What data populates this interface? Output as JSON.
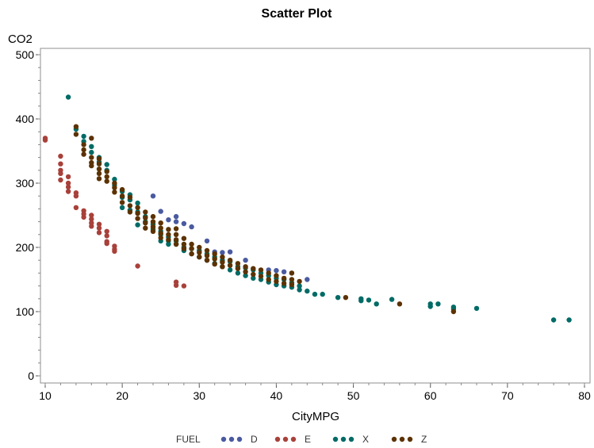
{
  "chart_data": {
    "type": "scatter",
    "title": "Scatter Plot",
    "xlabel": "CityMPG",
    "ylabel": "CO2",
    "xlim": [
      10,
      80
    ],
    "ylim": [
      0,
      500
    ],
    "xticks": [
      "10",
      "20",
      "30",
      "40",
      "50",
      "60",
      "70",
      "80"
    ],
    "yticks": [
      "0",
      "100",
      "200",
      "300",
      "400",
      "500"
    ],
    "grid": false,
    "legend": {
      "title": "FUEL",
      "position": "bottom"
    },
    "series": [
      {
        "name": "D",
        "color": "#4a5aa0",
        "points": [
          [
            24,
            280
          ],
          [
            25,
            256
          ],
          [
            26,
            243
          ],
          [
            27,
            248
          ],
          [
            27,
            240
          ],
          [
            28,
            237
          ],
          [
            29,
            232
          ],
          [
            31,
            210
          ],
          [
            32,
            193
          ],
          [
            33,
            192
          ],
          [
            34,
            193
          ],
          [
            36,
            180
          ],
          [
            39,
            165
          ],
          [
            40,
            164
          ],
          [
            41,
            162
          ],
          [
            42,
            160
          ],
          [
            44,
            150
          ]
        ]
      },
      {
        "name": "E",
        "color": "#a8413a",
        "points": [
          [
            10,
            370
          ],
          [
            10,
            367
          ],
          [
            12,
            342
          ],
          [
            12,
            330
          ],
          [
            12,
            320
          ],
          [
            12,
            315
          ],
          [
            12,
            305
          ],
          [
            13,
            310
          ],
          [
            13,
            300
          ],
          [
            13,
            294
          ],
          [
            13,
            287
          ],
          [
            14,
            285
          ],
          [
            14,
            280
          ],
          [
            14,
            262
          ],
          [
            15,
            257
          ],
          [
            15,
            252
          ],
          [
            15,
            247
          ],
          [
            16,
            250
          ],
          [
            16,
            244
          ],
          [
            16,
            238
          ],
          [
            16,
            233
          ],
          [
            17,
            236
          ],
          [
            17,
            230
          ],
          [
            17,
            223
          ],
          [
            18,
            225
          ],
          [
            18,
            218
          ],
          [
            18,
            209
          ],
          [
            18,
            206
          ],
          [
            19,
            202
          ],
          [
            19,
            197
          ],
          [
            19,
            194
          ],
          [
            22,
            171
          ],
          [
            27,
            146
          ],
          [
            27,
            141
          ],
          [
            28,
            140
          ]
        ]
      },
      {
        "name": "X",
        "color": "#006b66",
        "points": [
          [
            13,
            434
          ],
          [
            14,
            384
          ],
          [
            15,
            373
          ],
          [
            15,
            365
          ],
          [
            16,
            357
          ],
          [
            16,
            348
          ],
          [
            17,
            340
          ],
          [
            17,
            333
          ],
          [
            18,
            329
          ],
          [
            18,
            320
          ],
          [
            19,
            306
          ],
          [
            19,
            297
          ],
          [
            20,
            287
          ],
          [
            20,
            278
          ],
          [
            20,
            262
          ],
          [
            21,
            282
          ],
          [
            21,
            274
          ],
          [
            21,
            258
          ],
          [
            22,
            269
          ],
          [
            22,
            255
          ],
          [
            22,
            235
          ],
          [
            23,
            248
          ],
          [
            23,
            240
          ],
          [
            24,
            236
          ],
          [
            24,
            228
          ],
          [
            25,
            225
          ],
          [
            25,
            220
          ],
          [
            25,
            210
          ],
          [
            26,
            216
          ],
          [
            26,
            210
          ],
          [
            26,
            205
          ],
          [
            27,
            210
          ],
          [
            27,
            205
          ],
          [
            28,
            200
          ],
          [
            28,
            195
          ],
          [
            29,
            198
          ],
          [
            29,
            190
          ],
          [
            30,
            195
          ],
          [
            30,
            185
          ],
          [
            31,
            190
          ],
          [
            31,
            180
          ],
          [
            32,
            185
          ],
          [
            32,
            175
          ],
          [
            33,
            180
          ],
          [
            33,
            170
          ],
          [
            34,
            178
          ],
          [
            34,
            165
          ],
          [
            35,
            170
          ],
          [
            35,
            160
          ],
          [
            36,
            168
          ],
          [
            36,
            156
          ],
          [
            37,
            165
          ],
          [
            37,
            152
          ],
          [
            38,
            160
          ],
          [
            38,
            150
          ],
          [
            39,
            156
          ],
          [
            39,
            146
          ],
          [
            40,
            152
          ],
          [
            40,
            142
          ],
          [
            41,
            150
          ],
          [
            41,
            140
          ],
          [
            42,
            145
          ],
          [
            42,
            138
          ],
          [
            43,
            140
          ],
          [
            43,
            134
          ],
          [
            44,
            132
          ],
          [
            45,
            127
          ],
          [
            46,
            127
          ],
          [
            48,
            122
          ],
          [
            51,
            120
          ],
          [
            51,
            117
          ],
          [
            52,
            118
          ],
          [
            53,
            112
          ],
          [
            55,
            119
          ],
          [
            60,
            112
          ],
          [
            60,
            108
          ],
          [
            61,
            112
          ],
          [
            63,
            107
          ],
          [
            63,
            104
          ],
          [
            66,
            105
          ],
          [
            76,
            87
          ],
          [
            78,
            87
          ]
        ]
      },
      {
        "name": "Z",
        "color": "#5c3200",
        "points": [
          [
            14,
            388
          ],
          [
            14,
            376
          ],
          [
            15,
            360
          ],
          [
            15,
            352
          ],
          [
            15,
            345
          ],
          [
            16,
            370
          ],
          [
            16,
            340
          ],
          [
            16,
            332
          ],
          [
            16,
            327
          ],
          [
            17,
            338
          ],
          [
            17,
            330
          ],
          [
            17,
            322
          ],
          [
            17,
            315
          ],
          [
            17,
            307
          ],
          [
            18,
            318
          ],
          [
            18,
            310
          ],
          [
            18,
            303
          ],
          [
            19,
            300
          ],
          [
            19,
            293
          ],
          [
            19,
            286
          ],
          [
            20,
            290
          ],
          [
            20,
            280
          ],
          [
            20,
            270
          ],
          [
            21,
            278
          ],
          [
            21,
            265
          ],
          [
            21,
            255
          ],
          [
            22,
            262
          ],
          [
            22,
            253
          ],
          [
            22,
            245
          ],
          [
            23,
            255
          ],
          [
            23,
            246
          ],
          [
            23,
            238
          ],
          [
            23,
            230
          ],
          [
            24,
            248
          ],
          [
            24,
            240
          ],
          [
            24,
            232
          ],
          [
            24,
            225
          ],
          [
            25,
            238
          ],
          [
            25,
            230
          ],
          [
            25,
            222
          ],
          [
            25,
            215
          ],
          [
            26,
            228
          ],
          [
            26,
            220
          ],
          [
            26,
            212
          ],
          [
            27,
            229
          ],
          [
            27,
            220
          ],
          [
            27,
            212
          ],
          [
            27,
            205
          ],
          [
            28,
            214
          ],
          [
            28,
            205
          ],
          [
            28,
            198
          ],
          [
            29,
            205
          ],
          [
            29,
            198
          ],
          [
            29,
            190
          ],
          [
            30,
            200
          ],
          [
            30,
            192
          ],
          [
            30,
            185
          ],
          [
            31,
            195
          ],
          [
            31,
            187
          ],
          [
            31,
            180
          ],
          [
            32,
            190
          ],
          [
            32,
            182
          ],
          [
            32,
            174
          ],
          [
            33,
            185
          ],
          [
            33,
            177
          ],
          [
            33,
            170
          ],
          [
            34,
            180
          ],
          [
            34,
            172
          ],
          [
            35,
            175
          ],
          [
            35,
            167
          ],
          [
            36,
            170
          ],
          [
            36,
            162
          ],
          [
            37,
            167
          ],
          [
            37,
            158
          ],
          [
            38,
            165
          ],
          [
            38,
            155
          ],
          [
            39,
            160
          ],
          [
            39,
            150
          ],
          [
            40,
            156
          ],
          [
            40,
            147
          ],
          [
            41,
            152
          ],
          [
            41,
            144
          ],
          [
            42,
            160
          ],
          [
            42,
            150
          ],
          [
            42,
            142
          ],
          [
            43,
            147
          ],
          [
            49,
            122
          ],
          [
            56,
            112
          ],
          [
            63,
            100
          ]
        ]
      }
    ]
  }
}
